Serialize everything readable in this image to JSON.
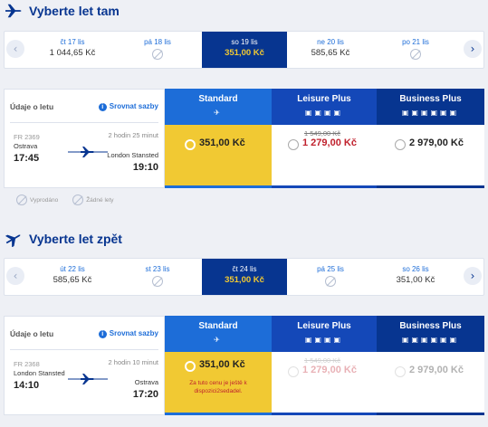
{
  "outbound": {
    "title": "Vyberte let tam",
    "dates": [
      {
        "day": "čt 17 lis",
        "price": "1 044,65 Kč",
        "available": true,
        "selected": false
      },
      {
        "day": "pá 18 lis",
        "price": "",
        "available": false,
        "selected": false
      },
      {
        "day": "so 19 lis",
        "price": "351,00 Kč",
        "available": true,
        "selected": true
      },
      {
        "day": "ne 20 lis",
        "price": "585,65 Kč",
        "available": true,
        "selected": false
      },
      {
        "day": "po 21 lis",
        "price": "",
        "available": false,
        "selected": false
      }
    ],
    "flight": {
      "header": "Údaje o letu",
      "compare": "Srovnat sazby",
      "number": "FR 2369",
      "from": "Ostrava",
      "dep_time": "17:45",
      "duration": "2 hodin 25 minut",
      "to": "London Stansted",
      "arr_time": "19:10"
    },
    "fares": {
      "standard": {
        "name": "Standard",
        "price": "351,00 Kč"
      },
      "leisure": {
        "name": "Leisure Plus",
        "old_price": "1 549,00 Kč",
        "price": "1 279,00 Kč"
      },
      "business": {
        "name": "Business Plus",
        "price": "2 979,00 Kč"
      }
    }
  },
  "legend": {
    "sold_out": "Vyprodáno",
    "no_flights": "Žádné lety"
  },
  "inbound": {
    "title": "Vyberte let zpět",
    "dates": [
      {
        "day": "út 22 lis",
        "price": "585,65 Kč",
        "available": true,
        "selected": false
      },
      {
        "day": "st 23 lis",
        "price": "",
        "available": false,
        "selected": false
      },
      {
        "day": "čt 24 lis",
        "price": "351,00 Kč",
        "available": true,
        "selected": true
      },
      {
        "day": "pá 25 lis",
        "price": "",
        "available": false,
        "selected": false
      },
      {
        "day": "so 26 lis",
        "price": "351,00 Kč",
        "available": true,
        "selected": false
      }
    ],
    "flight": {
      "header": "Údaje o letu",
      "compare": "Srovnat sazby",
      "number": "FR 2368",
      "from": "London Stansted",
      "dep_time": "14:10",
      "duration": "2 hodin 10 minut",
      "to": "Ostrava",
      "arr_time": "17:20"
    },
    "fares": {
      "standard": {
        "name": "Standard",
        "price": "351,00 Kč",
        "note": "Za tuto cenu je ještě k dispozici2sedadel."
      },
      "leisure": {
        "name": "Leisure Plus",
        "old_price": "1 549,00 Kč",
        "price": "1 279,00 Kč"
      },
      "business": {
        "name": "Business Plus",
        "price": "2 979,00 Kč"
      }
    }
  },
  "colors": {
    "navy": "#073590",
    "blue": "#1d6dd8",
    "yellow": "#f1c933",
    "red": "#c0212d"
  }
}
